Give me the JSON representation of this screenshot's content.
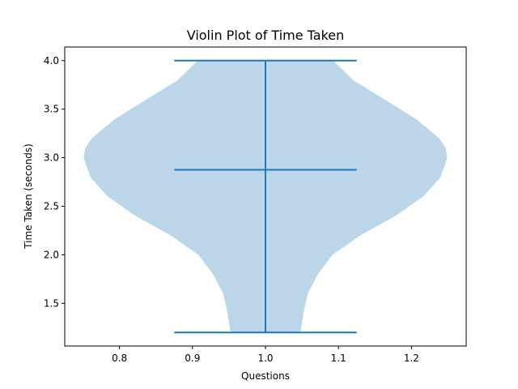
{
  "chart_data": {
    "type": "violin",
    "title": "Violin Plot of Time Taken",
    "xlabel": "Questions",
    "ylabel": "Time Taken (seconds)",
    "xlim": [
      0.725,
      1.275
    ],
    "ylim": [
      1.06,
      4.14
    ],
    "xticks": [
      0.8,
      0.9,
      1.0,
      1.1,
      1.2
    ],
    "xtick_labels": [
      "0.8",
      "0.9",
      "1.0",
      "1.1",
      "1.2"
    ],
    "yticks": [
      1.5,
      2.0,
      2.5,
      3.0,
      3.5,
      4.0
    ],
    "ytick_labels": [
      "1.5",
      "2.0",
      "2.5",
      "3.0",
      "3.5",
      "4.0"
    ],
    "grid": false,
    "colors": {
      "body": "#bbd6e8",
      "lines": "#1f77b4"
    },
    "violin": {
      "position": 1.0,
      "min": 1.2,
      "max": 4.0,
      "mean": 2.875,
      "cap_halfwidth": 0.125,
      "profile": [
        {
          "y": 1.2,
          "half_width": 0.048
        },
        {
          "y": 1.4,
          "half_width": 0.052
        },
        {
          "y": 1.6,
          "half_width": 0.058
        },
        {
          "y": 1.8,
          "half_width": 0.072
        },
        {
          "y": 2.0,
          "half_width": 0.092
        },
        {
          "y": 2.2,
          "half_width": 0.13
        },
        {
          "y": 2.4,
          "half_width": 0.178
        },
        {
          "y": 2.6,
          "half_width": 0.216
        },
        {
          "y": 2.8,
          "half_width": 0.24
        },
        {
          "y": 3.0,
          "half_width": 0.249
        },
        {
          "y": 3.1,
          "half_width": 0.247
        },
        {
          "y": 3.2,
          "half_width": 0.238
        },
        {
          "y": 3.4,
          "half_width": 0.206
        },
        {
          "y": 3.6,
          "half_width": 0.163
        },
        {
          "y": 3.8,
          "half_width": 0.12
        },
        {
          "y": 4.0,
          "half_width": 0.093
        }
      ]
    }
  }
}
